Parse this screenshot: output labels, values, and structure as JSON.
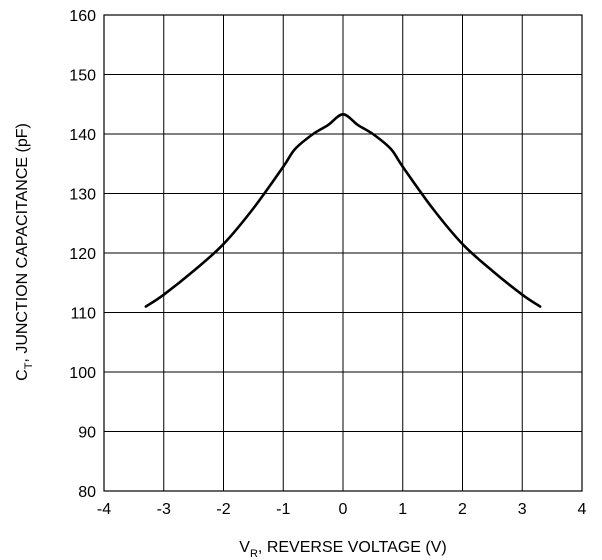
{
  "chart_data": {
    "type": "line",
    "xlabel": {
      "main": "V",
      "sub": "R",
      "rest": ", REVERSE VOLTAGE (V)"
    },
    "ylabel": {
      "main": "C",
      "sub": "T",
      "rest": ", JUNCTION CAPACITANCE (pF)"
    },
    "xlim": [
      -4,
      4
    ],
    "ylim": [
      80,
      160
    ],
    "xticks": [
      -4,
      -3,
      -2,
      -1,
      0,
      1,
      2,
      3,
      4
    ],
    "yticks": [
      80,
      90,
      100,
      110,
      120,
      130,
      140,
      150,
      160
    ],
    "grid": true,
    "legend": "none",
    "series": [
      {
        "color": "#000000",
        "x": [
          -3.3,
          -3.0,
          -2.5,
          -2.0,
          -1.5,
          -1.0,
          -0.8,
          -0.5,
          -0.25,
          0,
          0.25,
          0.5,
          0.8,
          1.0,
          1.5,
          2.0,
          2.5,
          3.0,
          3.3
        ],
        "y": [
          111.0,
          113.0,
          117.0,
          121.5,
          127.5,
          134.5,
          137.5,
          140.0,
          141.5,
          143.3,
          141.5,
          140.0,
          137.5,
          134.5,
          127.5,
          121.5,
          117.0,
          113.0,
          111.0
        ]
      }
    ]
  }
}
